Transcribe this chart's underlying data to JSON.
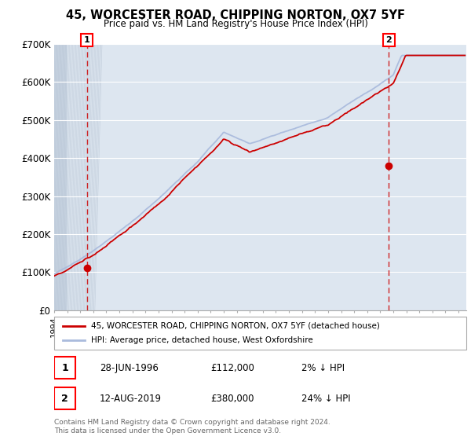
{
  "title": "45, WORCESTER ROAD, CHIPPING NORTON, OX7 5YF",
  "subtitle": "Price paid vs. HM Land Registry's House Price Index (HPI)",
  "ylim": [
    0,
    700000
  ],
  "yticks": [
    0,
    100000,
    200000,
    300000,
    400000,
    500000,
    600000,
    700000
  ],
  "ytick_labels": [
    "£0",
    "£100K",
    "£200K",
    "£300K",
    "£400K",
    "£500K",
    "£600K",
    "£700K"
  ],
  "x_start_year": 1994,
  "x_end_year": 2025,
  "hpi_color": "#aabbdd",
  "price_color": "#cc0000",
  "dashed_color": "#cc0000",
  "marker1_price": 112000,
  "marker1_label": "28-JUN-1996",
  "marker1_amount": "£112,000",
  "marker1_pct": "2% ↓ HPI",
  "marker2_price": 380000,
  "marker2_label": "12-AUG-2019",
  "marker2_amount": "£380,000",
  "marker2_pct": "24% ↓ HPI",
  "legend_line1": "45, WORCESTER ROAD, CHIPPING NORTON, OX7 5YF (detached house)",
  "legend_line2": "HPI: Average price, detached house, West Oxfordshire",
  "footer": "Contains HM Land Registry data © Crown copyright and database right 2024.\nThis data is licensed under the Open Government Licence v3.0.",
  "background_plot": "#dde6f0",
  "background_hatch": "#c8d4e2",
  "grid_color": "#ffffff"
}
